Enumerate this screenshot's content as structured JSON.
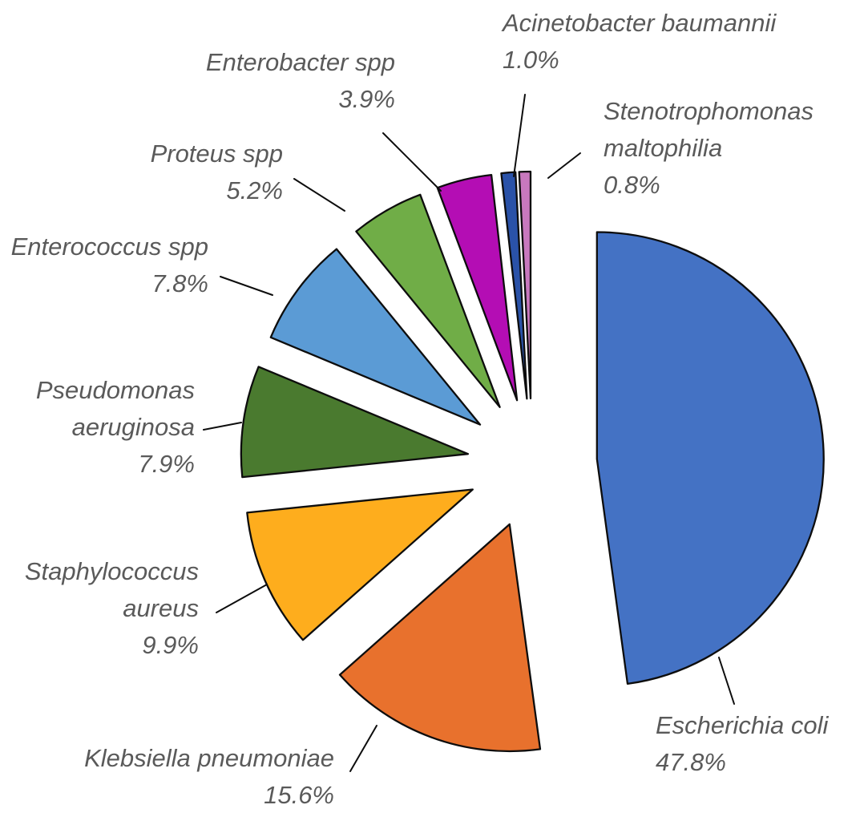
{
  "figure": {
    "background": "#ffffff",
    "text_color": "#5a5a5a",
    "outline_color": "#0d0d0d"
  },
  "chart_data": {
    "type": "pie",
    "style": "exploded",
    "title": "",
    "start_angle_deg": 0,
    "direction": "clockwise",
    "labels_position": "outside-with-leader-lines",
    "legend": "none",
    "total_percent": 99.9,
    "categories": [
      "Escherichia coli",
      "Klebsiella pneumoniae",
      "Staphylococcus aureus",
      "Pseudomonas aeruginosa",
      "Enterococcus spp",
      "Proteus spp",
      "Enterobacter spp",
      "Acinetobacter baumannii",
      "Stenotrophomonas maltophilia"
    ],
    "values": [
      47.8,
      15.6,
      9.9,
      7.9,
      7.8,
      5.2,
      3.9,
      1.0,
      0.8
    ],
    "slices": [
      {
        "name": "Escherichia coli",
        "value": 47.8,
        "pct_label": "47.8%",
        "color": "#4472C4",
        "label_lines": [
          "Escherichia coli"
        ]
      },
      {
        "name": "Klebsiella pneumoniae",
        "value": 15.6,
        "pct_label": "15.6%",
        "color": "#E8712D",
        "label_lines": [
          "Klebsiella pneumoniae"
        ]
      },
      {
        "name": "Staphylococcus aureus",
        "value": 9.9,
        "pct_label": "9.9%",
        "color": "#FEAD1D",
        "label_lines": [
          "Staphylococcus",
          "aureus"
        ]
      },
      {
        "name": "Pseudomonas aeruginosa",
        "value": 7.9,
        "pct_label": "7.9%",
        "color": "#4A7A2F",
        "label_lines": [
          "Pseudomonas",
          "aeruginosa"
        ]
      },
      {
        "name": "Enterococcus spp",
        "value": 7.8,
        "pct_label": "7.8%",
        "color": "#5B9BD5",
        "label_lines": [
          "Enterococcus spp"
        ]
      },
      {
        "name": "Proteus spp",
        "value": 5.2,
        "pct_label": "5.2%",
        "color": "#70AD47",
        "label_lines": [
          "Proteus spp"
        ]
      },
      {
        "name": "Enterobacter spp",
        "value": 3.9,
        "pct_label": "3.9%",
        "color": "#B40DB4",
        "label_lines": [
          "Enterobacter spp"
        ]
      },
      {
        "name": "Acinetobacter baumannii",
        "value": 1.0,
        "pct_label": "1.0%",
        "color": "#2A52A8",
        "label_lines": [
          "Acinetobacter baumannii"
        ]
      },
      {
        "name": "Stenotrophomonas maltophilia",
        "value": 0.8,
        "pct_label": "0.8%",
        "color": "#C878BE",
        "label_lines": [
          "Stenotrophomonas",
          "maltophilia"
        ]
      }
    ]
  }
}
